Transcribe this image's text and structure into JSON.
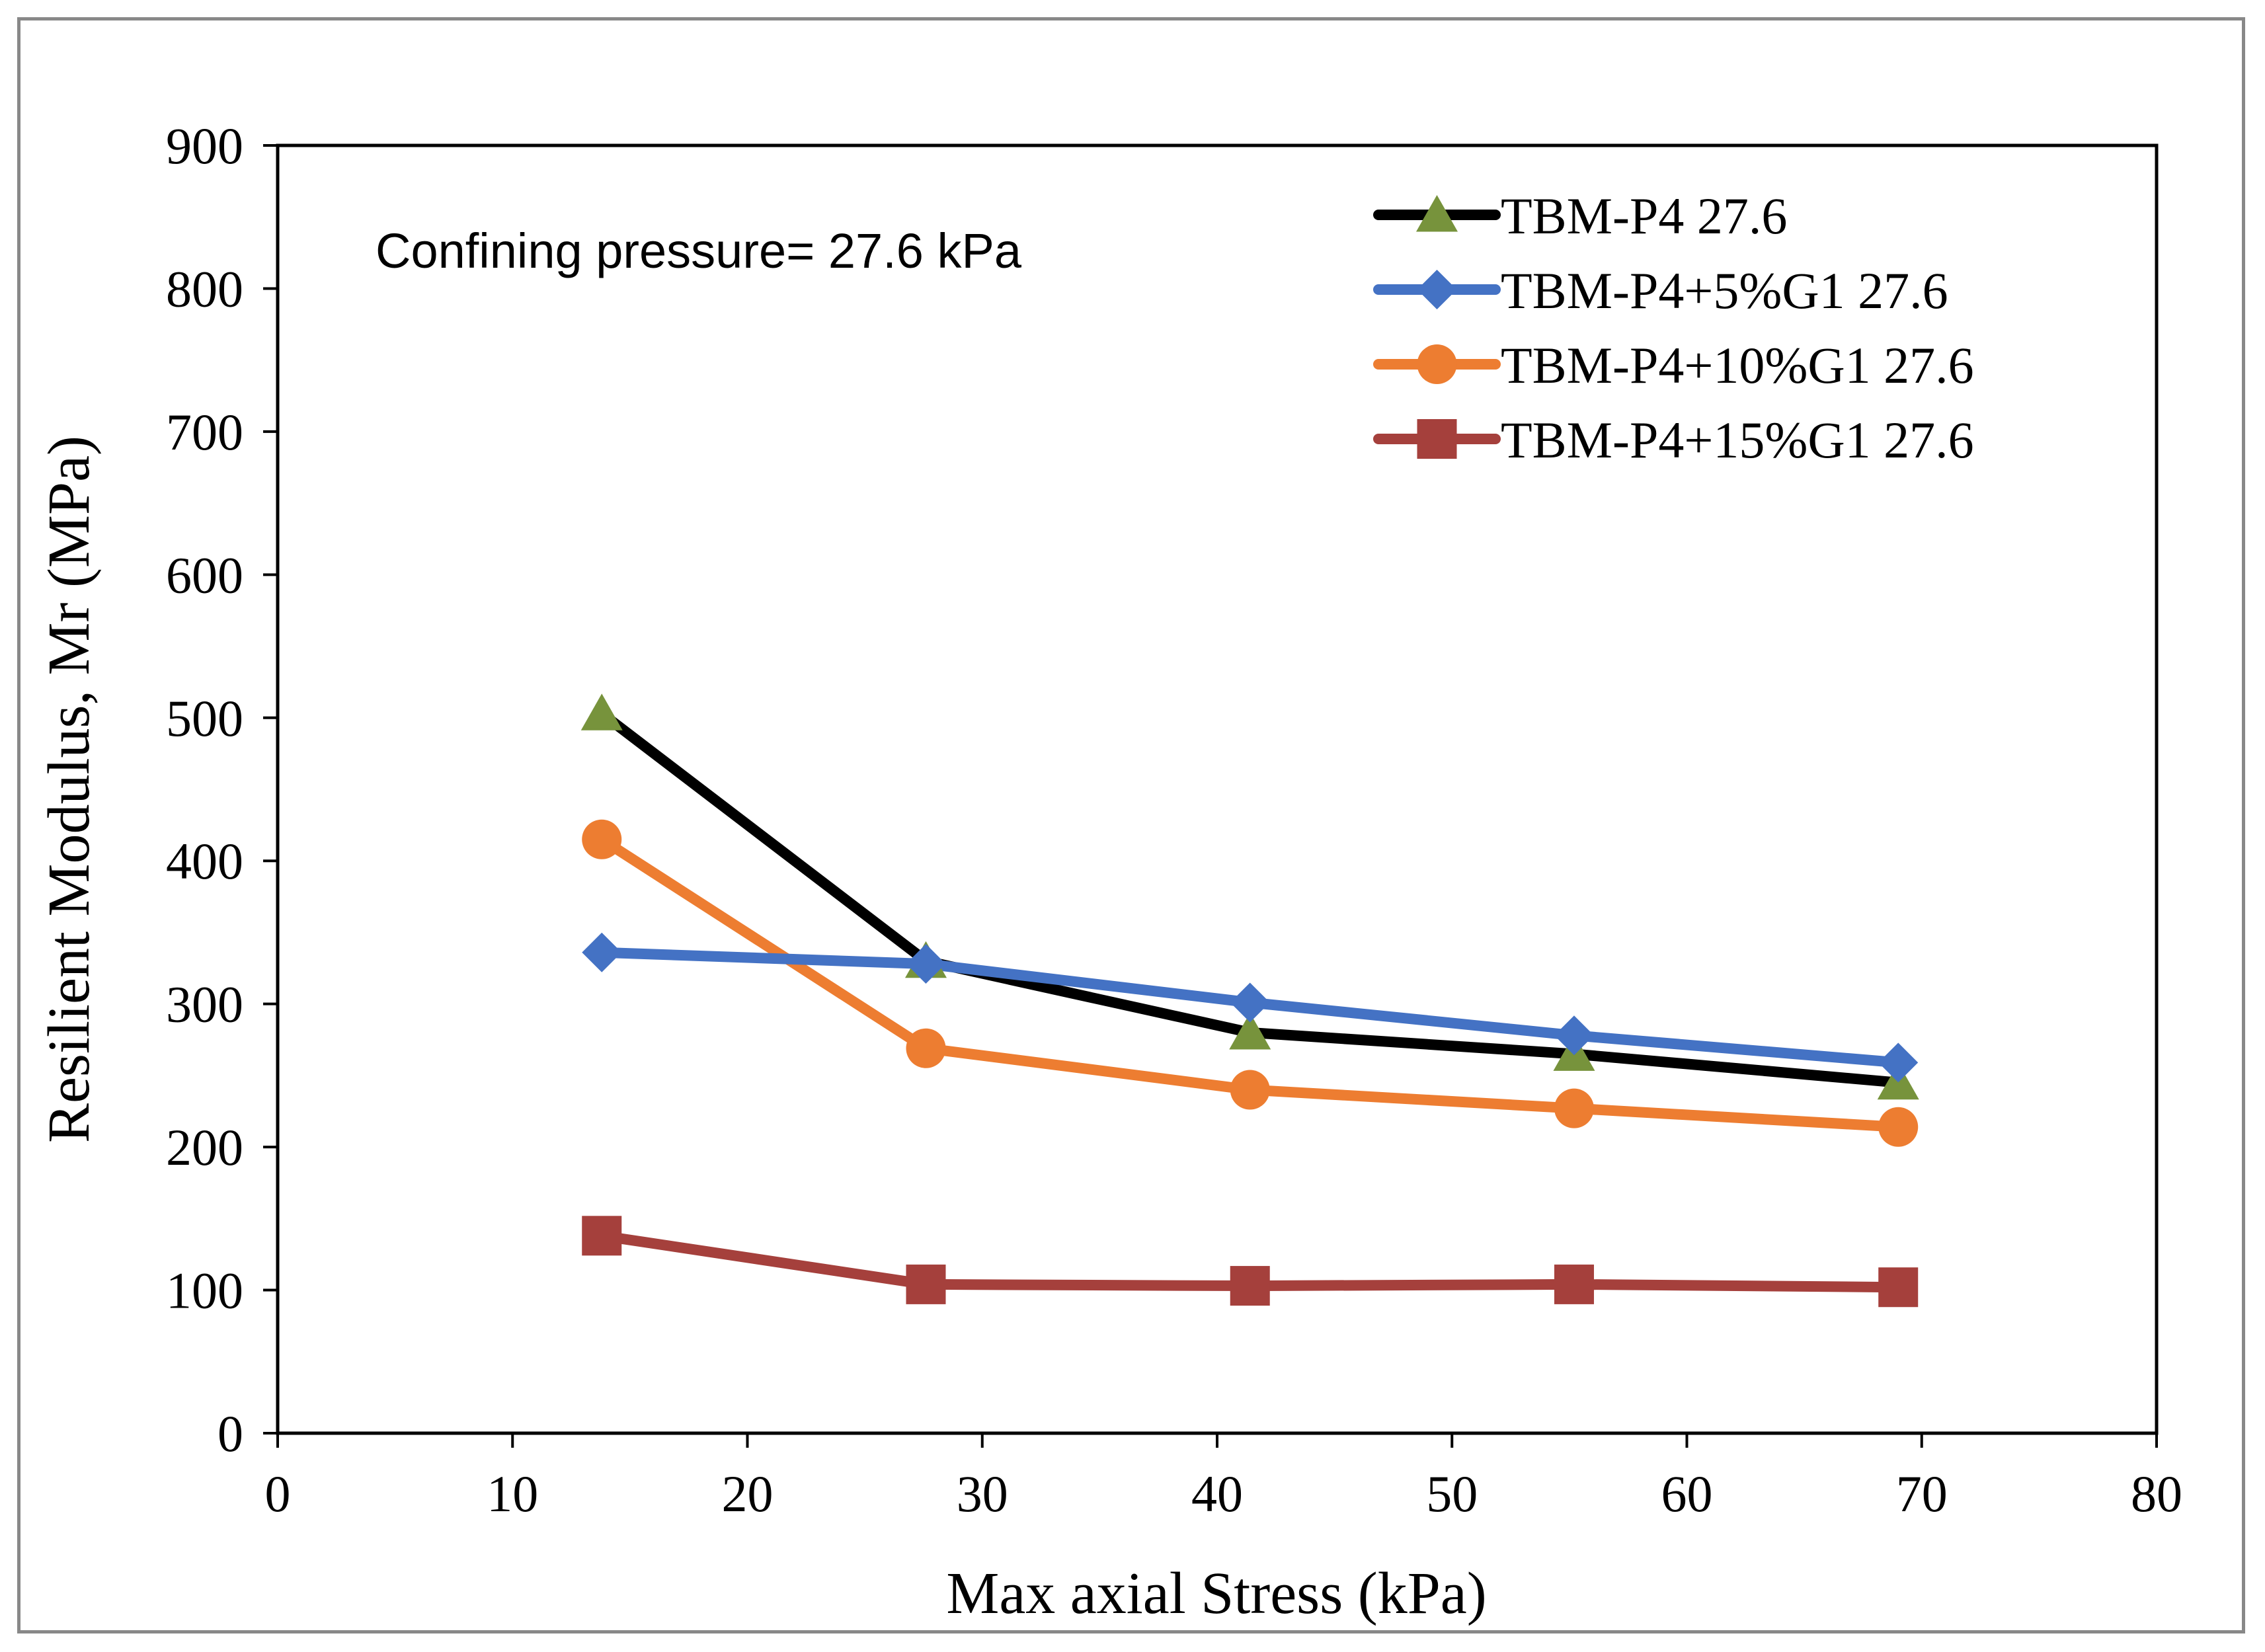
{
  "chart_data": {
    "type": "line",
    "title": "",
    "xlabel": "Max axial Stress (kPa)",
    "ylabel": "Resilient Modulus, Mr (MPa)",
    "xlim": [
      0,
      80
    ],
    "ylim": [
      0,
      900
    ],
    "x_ticks": [
      0,
      10,
      20,
      30,
      40,
      50,
      60,
      70,
      80
    ],
    "y_ticks": [
      0,
      100,
      200,
      300,
      400,
      500,
      600,
      700,
      800,
      900
    ],
    "grid": false,
    "legend_position": "top-right",
    "annotation": "Confining pressure= 27.6 kPa",
    "x": [
      13.8,
      27.6,
      41.4,
      55.2,
      69.0
    ],
    "series": [
      {
        "name": "TBM-P4 27.6",
        "marker": "triangle",
        "line_color": "#000000",
        "marker_color": "#77933C",
        "values": [
          503,
          330,
          280,
          265,
          245
        ]
      },
      {
        "name": "TBM-P4+5%G1 27.6",
        "marker": "diamond",
        "line_color": "#4472C4",
        "marker_color": "#4472C4",
        "values": [
          336,
          328,
          301,
          278,
          259
        ]
      },
      {
        "name": "TBM-P4+10%G1 27.6",
        "marker": "circle",
        "line_color": "#ED7D31",
        "marker_color": "#ED7D31",
        "values": [
          415,
          269,
          240,
          227,
          214
        ]
      },
      {
        "name": "TBM-P4+15%G1 27.6",
        "marker": "square",
        "line_color": "#A5403C",
        "marker_color": "#A5403C",
        "values": [
          138,
          104,
          103,
          104,
          102
        ]
      }
    ]
  }
}
